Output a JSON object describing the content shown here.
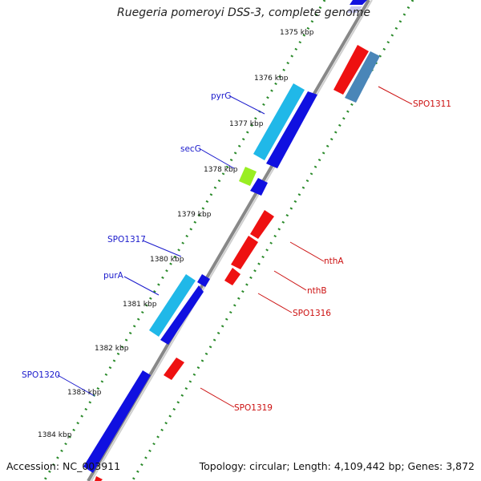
{
  "title": "Ruegeria pomeroyi DSS-3, complete genome",
  "footer": {
    "accession": "Accession: NC_003911",
    "topology": "Topology: circular; Length: 4,109,442 bp; Genes: 3,872"
  },
  "colors": {
    "forward_gene": "#1010e0",
    "forward_highlight": "#20b8e8",
    "forward_light": "#99ee22",
    "reverse_gene": "#ee1111",
    "reverse_highlight": "#4a86b8",
    "backbone": "#888888",
    "tick_dots": "#2a8a2a",
    "forward_label": "#1a1acc",
    "reverse_label": "#cc1111"
  },
  "ticks": [
    "1375 kbp",
    "1376 kbp",
    "1377 kbp",
    "1378 kbp",
    "1379 kbp",
    "1380 kbp",
    "1381 kbp",
    "1382 kbp",
    "1383 kbp",
    "1384 kbp"
  ],
  "forward_genes": [
    {
      "name": "pyrG",
      "color": "forward_highlight"
    },
    {
      "name": "secG",
      "color": "forward_light"
    },
    {
      "name": "SPO1317",
      "color": "forward_gene"
    },
    {
      "name": "purA",
      "color": "forward_highlight"
    },
    {
      "name": "SPO1320",
      "color": "forward_gene"
    }
  ],
  "reverse_genes": [
    {
      "name": "SPO1311",
      "color": "reverse_highlight"
    },
    {
      "name": "nthA",
      "color": "reverse_gene"
    },
    {
      "name": "nthB",
      "color": "reverse_gene"
    },
    {
      "name": "SPO1316",
      "color": "reverse_gene"
    },
    {
      "name": "SPO1319",
      "color": "reverse_gene"
    }
  ]
}
